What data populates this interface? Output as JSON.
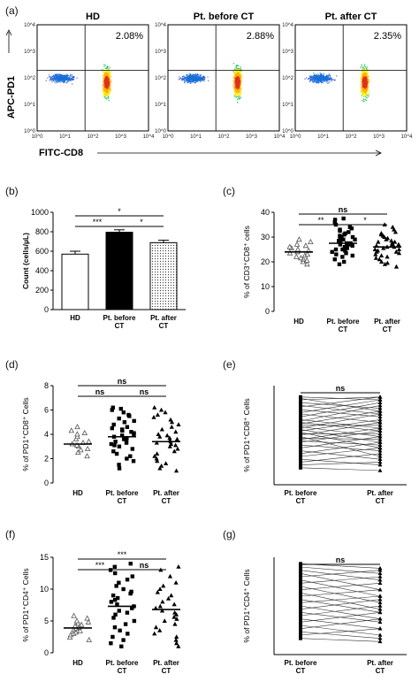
{
  "panel_a": {
    "label": "(a)",
    "y_label": "APC-PD1",
    "x_label": "FITC-CD8",
    "plots": [
      {
        "title": "HD",
        "pct": "2.08%"
      },
      {
        "title": "Pt. before CT",
        "pct": "2.88%"
      },
      {
        "title": "Pt. after CT",
        "pct": "2.35%"
      }
    ],
    "tick_labels": [
      "10^0",
      "10^1",
      "10^2",
      "10^3",
      "10^4"
    ]
  },
  "panel_b": {
    "label": "(b)"
  },
  "panel_c": {
    "label": "(c)"
  },
  "panel_d": {
    "label": "(d)"
  },
  "panel_e": {
    "label": "(e)"
  },
  "panel_f": {
    "label": "(f)"
  },
  "panel_g": {
    "label": "(g)"
  },
  "chart_data": [
    {
      "id": "b",
      "type": "bar",
      "ylabel": "Count (cells/µL)",
      "categories": [
        "HD",
        "Pt. before\nCT",
        "Pt. after\nCT"
      ],
      "values": [
        570,
        795,
        688
      ],
      "errors": [
        30,
        25,
        25
      ],
      "fills": [
        "#ffffff",
        "#000000",
        "dotted"
      ],
      "ylim": [
        0,
        1000
      ],
      "yticks": [
        0,
        200,
        400,
        600,
        800,
        1000
      ],
      "significance": [
        {
          "from": 0,
          "to": 1,
          "label": "***"
        },
        {
          "from": 1,
          "to": 2,
          "label": "*"
        },
        {
          "from": 0,
          "to": 2,
          "label": "*"
        }
      ]
    },
    {
      "id": "c",
      "type": "scatter",
      "ylabel": "% of CD3⁺CD8⁺ cells",
      "categories": [
        "HD",
        "Pt. before\nCT",
        "Pt. after\nCT"
      ],
      "markers": [
        "triangle-open",
        "square",
        "triangle"
      ],
      "ylim": [
        0,
        40
      ],
      "yticks": [
        0,
        10,
        20,
        30,
        40
      ],
      "means": [
        24,
        27.5,
        26
      ],
      "groups": [
        [
          19,
          20,
          20.5,
          21,
          21.5,
          22,
          22.5,
          23,
          23.5,
          24,
          24.5,
          25,
          25.5,
          26,
          26.5,
          27,
          28,
          29
        ],
        [
          19,
          20,
          21,
          22,
          22.5,
          23,
          23.5,
          24,
          24.5,
          25,
          25,
          25.5,
          26,
          26,
          26.5,
          27,
          27,
          27.5,
          27.5,
          28,
          28,
          28.5,
          29,
          29,
          29.5,
          30,
          30,
          30.5,
          31,
          31.5,
          32,
          32.5,
          33,
          33.5,
          34,
          35,
          36,
          37,
          37.5
        ],
        [
          18,
          19,
          19.5,
          20,
          21,
          21.5,
          22,
          22.5,
          23,
          23.5,
          24,
          24,
          24.5,
          25,
          25,
          25.5,
          26,
          26,
          26.5,
          27,
          27,
          27.5,
          28,
          28,
          28.5,
          29,
          29.5,
          30,
          30.5,
          31,
          31.5,
          32,
          33,
          34,
          35
        ]
      ],
      "significance": [
        {
          "from": 0,
          "to": 1,
          "label": "**"
        },
        {
          "from": 1,
          "to": 2,
          "label": "*"
        },
        {
          "from": 0,
          "to": 2,
          "label": "ns"
        }
      ]
    },
    {
      "id": "d",
      "type": "scatter",
      "ylabel": "% of PD1⁺CD8⁺ Cells",
      "categories": [
        "HD",
        "Pt. before\nCT",
        "Pt. after\nCT"
      ],
      "markers": [
        "triangle-open",
        "square",
        "triangle"
      ],
      "ylim": [
        0,
        8
      ],
      "yticks": [
        0,
        2,
        4,
        6,
        8
      ],
      "means": [
        3.2,
        3.8,
        3.4
      ],
      "groups": [
        [
          2.2,
          2.5,
          2.7,
          2.8,
          3.0,
          3.1,
          3.2,
          3.3,
          3.4,
          3.6,
          3.8,
          4.0,
          4.1,
          4.3,
          4.6
        ],
        [
          1.2,
          1.5,
          1.8,
          2.0,
          2.2,
          2.4,
          2.6,
          2.8,
          3.0,
          3.1,
          3.2,
          3.3,
          3.4,
          3.5,
          3.6,
          3.7,
          3.8,
          3.9,
          4.0,
          4.1,
          4.2,
          4.3,
          4.4,
          4.5,
          4.6,
          4.8,
          5.0,
          5.1,
          5.3,
          5.5,
          5.6,
          5.8,
          6.0,
          6.1,
          6.2
        ],
        [
          1.0,
          1.2,
          1.4,
          1.6,
          1.8,
          2.0,
          2.2,
          2.4,
          2.6,
          2.8,
          3.0,
          3.1,
          3.2,
          3.3,
          3.4,
          3.5,
          3.6,
          3.7,
          3.8,
          3.9,
          4.0,
          4.2,
          4.4,
          4.6,
          4.8,
          5.0,
          5.2,
          5.4,
          5.6,
          5.8,
          6.0,
          6.2
        ]
      ],
      "significance": [
        {
          "from": 0,
          "to": 1,
          "label": "ns"
        },
        {
          "from": 1,
          "to": 2,
          "label": "ns"
        },
        {
          "from": 0,
          "to": 2,
          "label": "ns"
        }
      ]
    },
    {
      "id": "e",
      "type": "line",
      "ylabel": "% of PD1⁺CD8⁺ Cells",
      "categories": [
        "Pt. before\nCT",
        "Pt. after\nCT"
      ],
      "ylim": [
        0,
        7
      ],
      "pairs": [
        [
          1.2,
          1.0
        ],
        [
          1.4,
          1.6
        ],
        [
          1.6,
          2.2
        ],
        [
          1.8,
          1.4
        ],
        [
          2.0,
          2.6
        ],
        [
          2.2,
          3.0
        ],
        [
          2.4,
          1.8
        ],
        [
          2.6,
          3.4
        ],
        [
          2.8,
          2.4
        ],
        [
          3.0,
          3.8
        ],
        [
          3.1,
          2.8
        ],
        [
          3.2,
          4.0
        ],
        [
          3.3,
          3.2
        ],
        [
          3.4,
          2.0
        ],
        [
          3.5,
          4.4
        ],
        [
          3.6,
          3.6
        ],
        [
          3.7,
          2.6
        ],
        [
          3.8,
          4.6
        ],
        [
          3.9,
          3.0
        ],
        [
          4.0,
          5.0
        ],
        [
          4.1,
          3.4
        ],
        [
          4.2,
          4.2
        ],
        [
          4.3,
          5.2
        ],
        [
          4.4,
          3.8
        ],
        [
          4.5,
          5.6
        ],
        [
          4.6,
          4.0
        ],
        [
          4.8,
          5.8
        ],
        [
          5.0,
          4.4
        ],
        [
          5.1,
          6.0
        ],
        [
          5.3,
          4.8
        ],
        [
          5.5,
          6.2
        ],
        [
          5.6,
          5.0
        ],
        [
          5.8,
          5.4
        ],
        [
          6.0,
          6.2
        ],
        [
          6.1,
          5.2
        ],
        [
          6.2,
          6.0
        ]
      ],
      "significance": [
        {
          "from": 0,
          "to": 1,
          "label": "ns"
        }
      ]
    },
    {
      "id": "f",
      "type": "scatter",
      "ylabel": "% of PD1⁺CD4⁺ Cells",
      "categories": [
        "HD",
        "Pt. before\nCT",
        "Pt. after\nCT"
      ],
      "markers": [
        "triangle-open",
        "square",
        "triangle"
      ],
      "ylim": [
        0,
        15
      ],
      "yticks": [
        0,
        5,
        10,
        15
      ],
      "means": [
        3.9,
        7.3,
        6.8
      ],
      "groups": [
        [
          2.0,
          2.4,
          2.8,
          3.0,
          3.2,
          3.4,
          3.6,
          3.8,
          4.0,
          4.2,
          4.4,
          4.6,
          4.8,
          5.0,
          5.4,
          5.8
        ],
        [
          1.0,
          1.5,
          2.0,
          2.5,
          3.0,
          3.5,
          4.0,
          4.5,
          5.0,
          5.5,
          6.0,
          6.3,
          6.6,
          7.0,
          7.3,
          7.6,
          8.0,
          8.3,
          8.6,
          9.0,
          9.3,
          9.6,
          10.0,
          10.5,
          11.0,
          11.5,
          12.0,
          12.5,
          13.0,
          13.5,
          14.0
        ],
        [
          1.0,
          1.5,
          2.0,
          2.5,
          3.0,
          3.5,
          4.0,
          4.5,
          5.0,
          5.3,
          5.6,
          6.0,
          6.3,
          6.6,
          7.0,
          7.3,
          7.6,
          8.0,
          8.5,
          9.0,
          9.5,
          10.0,
          10.5,
          11.0,
          12.0,
          13.0,
          13.5
        ]
      ],
      "significance": [
        {
          "from": 0,
          "to": 1,
          "label": "***"
        },
        {
          "from": 1,
          "to": 2,
          "label": "ns"
        },
        {
          "from": 0,
          "to": 2,
          "label": "***"
        }
      ]
    },
    {
      "id": "g",
      "type": "line",
      "ylabel": "% of PD1⁺CD4⁺ Cells",
      "categories": [
        "Pt. before\nCT",
        "Pt. after\nCT"
      ],
      "ylim": [
        0,
        15
      ],
      "pairs": [
        [
          2.5,
          2.0
        ],
        [
          3.0,
          4.0
        ],
        [
          3.5,
          2.5
        ],
        [
          4.0,
          5.5
        ],
        [
          4.5,
          3.0
        ],
        [
          5.0,
          6.5
        ],
        [
          5.5,
          4.0
        ],
        [
          6.0,
          7.5
        ],
        [
          6.5,
          5.0
        ],
        [
          7.0,
          8.5
        ],
        [
          7.5,
          5.5
        ],
        [
          8.0,
          9.0
        ],
        [
          8.5,
          6.5
        ],
        [
          9.0,
          10.0
        ],
        [
          9.5,
          7.0
        ],
        [
          10.0,
          11.0
        ],
        [
          10.5,
          8.0
        ],
        [
          11.0,
          12.0
        ],
        [
          11.5,
          9.0
        ],
        [
          12.0,
          13.0
        ],
        [
          12.5,
          10.0
        ],
        [
          13.0,
          11.5
        ],
        [
          13.5,
          12.5
        ],
        [
          14.0,
          13.3
        ]
      ],
      "significance": [
        {
          "from": 0,
          "to": 1,
          "label": "ns"
        }
      ]
    }
  ]
}
